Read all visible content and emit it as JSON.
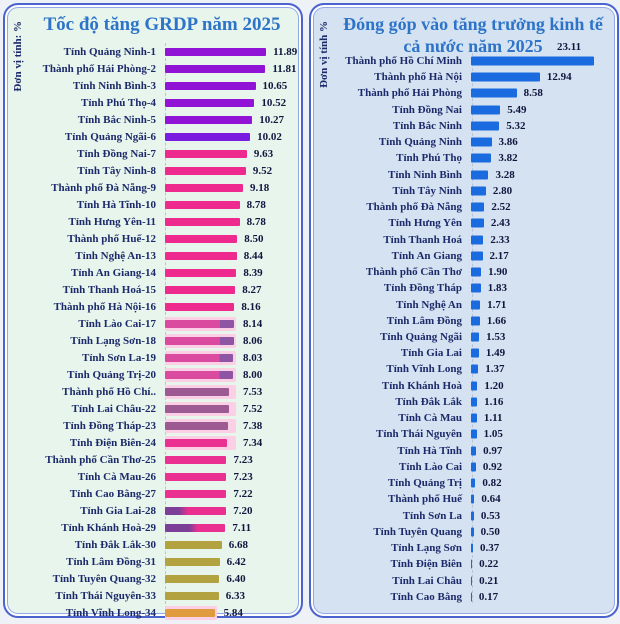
{
  "chart_data": [
    {
      "type": "bar",
      "orientation": "horizontal",
      "title": "Tốc độ tăng GRDP năm 2025",
      "unit_label": "Đơn vị tính: %",
      "xlim": [
        0,
        12.4
      ],
      "grid": false,
      "legend": "none",
      "categories": [
        "Tỉnh Quảng Ninh-1",
        "Thành phố Hải Phòng-2",
        "Tỉnh Ninh Bình-3",
        "Tỉnh Phú Thọ-4",
        "Tỉnh Bắc Ninh-5",
        "Tỉnh Quảng Ngãi-6",
        "Tỉnh Đồng Nai-7",
        "Tỉnh Tây Ninh-8",
        "Thành phố Đà Nẵng-9",
        "Tỉnh Hà Tĩnh-10",
        "Tỉnh Hưng Yên-11",
        "Thành phố Huế-12",
        "Tỉnh Nghệ An-13",
        "Tỉnh An Giang-14",
        "Tỉnh Thanh Hoá-15",
        "Thành phố Hà Nội-16",
        "Tỉnh Lào Cai-17",
        "Tỉnh Lạng Sơn-18",
        "Tỉnh Sơn La-19",
        "Tỉnh Quảng Trị-20",
        "Thành phố Hồ Chí..",
        "Tỉnh Lai Châu-22",
        "Tỉnh Đồng Tháp-23",
        "Tỉnh Điện Biên-24",
        "Thành phố Cần Thơ-25",
        "Tỉnh Cà Mau-26",
        "Tỉnh Cao Bằng-27",
        "Tỉnh Gia Lai-28",
        "Tỉnh Khánh Hoà-29",
        "Tỉnh Đắk Lắk-30",
        "Tỉnh Lâm Đồng-31",
        "Tỉnh Tuyên Quang-32",
        "Tỉnh Thái Nguyên-33",
        "Tỉnh Vĩnh Long-34"
      ],
      "values": [
        11.89,
        11.81,
        10.65,
        10.52,
        10.27,
        10.02,
        9.63,
        9.52,
        9.18,
        8.78,
        8.78,
        8.5,
        8.44,
        8.39,
        8.27,
        8.16,
        8.14,
        8.06,
        8.03,
        8.0,
        7.53,
        7.52,
        7.38,
        7.34,
        7.23,
        7.23,
        7.22,
        7.2,
        7.11,
        6.68,
        6.42,
        6.4,
        6.33,
        5.84
      ],
      "bar_colors": [
        "#9013d6",
        "#9013d6",
        "#9013d6",
        "#9013d6",
        "#9013d6",
        "#7a1be0",
        "#ee2a8f",
        "#ee2a8f",
        "#ee2a8f",
        "#ee2a8f",
        "#ee2a8f",
        "#ee2a8f",
        "#ee2a8f",
        "#ee2a8f",
        "#ee2a8f",
        "#ee2a8f",
        "linear-gradient(90deg,#da4a9e 0%,#da4a9e 80%,#8f55a5 80%,#8f55a5 100%)",
        "linear-gradient(90deg,#da4a9e 0%,#da4a9e 80%,#8f55a5 80%,#8f55a5 100%)",
        "linear-gradient(90deg,#da4a9e 0%,#da4a9e 80%,#8f55a5 80%,#8f55a5 100%)",
        "linear-gradient(90deg,#da4a9e 0%,#da4a9e 80%,#8f55a5 80%,#8f55a5 100%)",
        "#9d5a92",
        "#9d5a92",
        "#9d5a92",
        "#ea3091",
        "#ea3091",
        "#ea3091",
        "#ea3091",
        "linear-gradient(90deg,#7c3f97 0%,#7c3f97 22%,#e93090 38%,#e93090 100%)",
        "linear-gradient(90deg,#7c3f97 0%,#7c3f97 40%,#e93090 55%,#e93090 100%)",
        "#b2a240",
        "#b2a240",
        "#b2a240",
        "#b2a240",
        "#df9b3e"
      ],
      "halo_color": "#fbd0e4",
      "halo_widths": {
        "17": 8.35,
        "18": 8.35,
        "19": 8.35,
        "20": 8.35,
        "21": 8.35,
        "22": 8.35,
        "23": 8.35,
        "24": 8.35,
        "34": 6.08
      }
    },
    {
      "type": "bar",
      "orientation": "horizontal",
      "title": "Đóng góp vào tăng trưởng kinh tế cả nước năm 2025",
      "title_lines": [
        "Đóng góp vào tăng trưởng kinh tế",
        "cả nước năm 2025"
      ],
      "unit_label": "Đơn vị tính %",
      "xlim": [
        0,
        23.6
      ],
      "grid": false,
      "legend": "none",
      "first_value_above": true,
      "categories": [
        "Thành phố Hồ Chí Minh",
        "Thành phố Hà Nội",
        "Thành phố Hải Phòng",
        "Tỉnh Đồng Nai",
        "Tỉnh Bắc Ninh",
        "Tỉnh Quảng Ninh",
        "Tỉnh Phú Thọ",
        "Tỉnh Ninh Bình",
        "Tỉnh Tây Ninh",
        "Thành phố Đà Nẵng",
        "Tỉnh Hưng Yên",
        "Tỉnh Thanh Hoá",
        "Tỉnh An Giang",
        "Thành phố Cần Thơ",
        "Tỉnh Đồng Tháp",
        "Tỉnh Nghệ An",
        "Tỉnh Lâm Đồng",
        "Tỉnh Quảng Ngãi",
        "Tỉnh Gia Lai",
        "Tỉnh Vĩnh Long",
        "Tỉnh Khánh Hoà",
        "Tỉnh Đắk Lắk",
        "Tỉnh Cà Mau",
        "Tỉnh Thái Nguyên",
        "Tỉnh Hà Tĩnh",
        "Tỉnh Lào Cai",
        "Tỉnh Quảng Trị",
        "Thành phố Huế",
        "Tỉnh Sơn La",
        "Tỉnh Tuyên Quang",
        "Tỉnh Lạng Sơn",
        "Tỉnh Điện Biên",
        "Tỉnh Lai Châu",
        "Tỉnh Cao Bằng"
      ],
      "values": [
        23.11,
        12.94,
        8.58,
        5.49,
        5.32,
        3.86,
        3.82,
        3.28,
        2.8,
        2.52,
        2.43,
        2.33,
        2.17,
        1.9,
        1.83,
        1.71,
        1.66,
        1.53,
        1.49,
        1.37,
        1.2,
        1.16,
        1.11,
        1.05,
        0.97,
        0.92,
        0.82,
        0.64,
        0.53,
        0.5,
        0.37,
        0.22,
        0.21,
        0.17
      ],
      "bar_color": "#1b6be0"
    }
  ],
  "colors": {
    "left_panel_bg": "#e7f5ec",
    "right_panel_bg": "#d5e2f1",
    "panel_border": "#4a63cf",
    "title_text": "#2d74c8",
    "label_text": "#1c2a6b",
    "value_text": "#10173f"
  }
}
